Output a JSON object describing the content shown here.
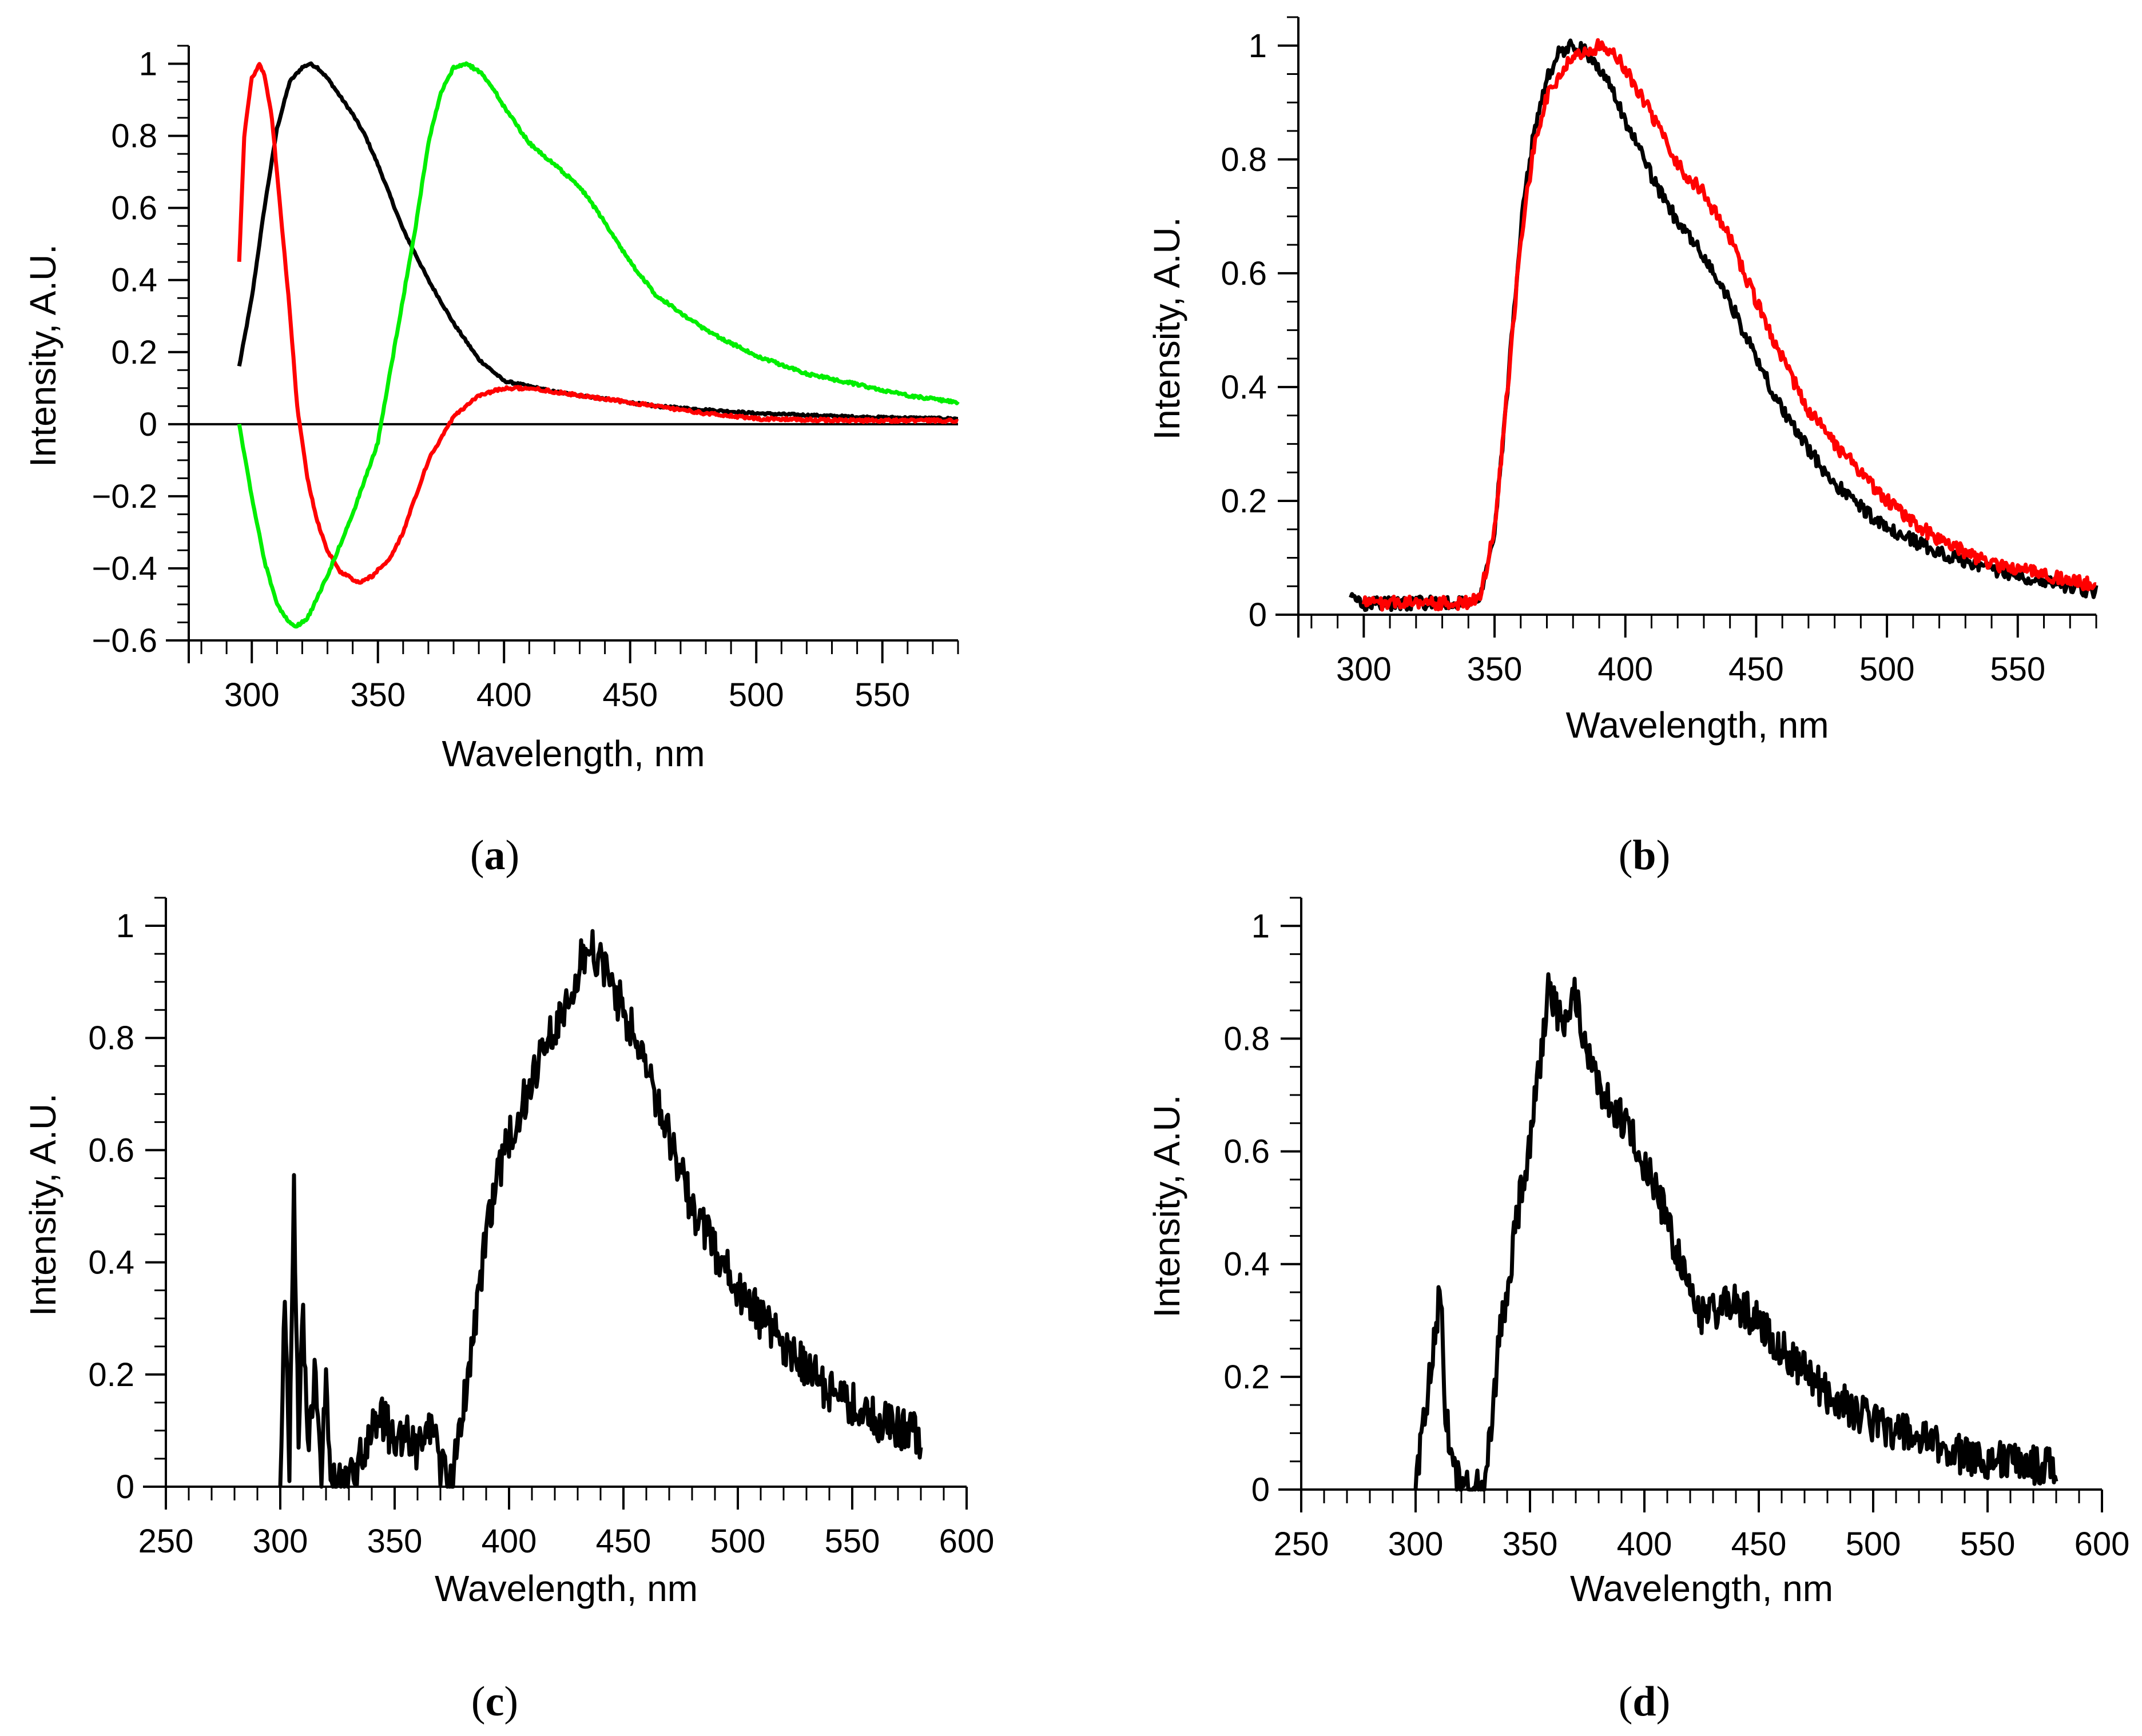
{
  "chart_data": [
    {
      "panel": "(a)",
      "caption_letter": "a",
      "type": "line",
      "xlabel": "Wavelength, nm",
      "ylabel": "Intensity, A.U.",
      "xlim": [
        275,
        580
      ],
      "ylim": [
        -0.6,
        1.05
      ],
      "xticks": [
        300,
        350,
        400,
        450,
        500,
        550
      ],
      "yticks": [
        -0.6,
        -0.4,
        -0.2,
        0,
        0.2,
        0.4,
        0.6,
        0.8,
        1
      ],
      "zero_line": true,
      "series": [
        {
          "name": "black",
          "color": "#000000",
          "noise": 0.003,
          "x": [
            295,
            300,
            305,
            310,
            315,
            320,
            323,
            326,
            330,
            335,
            340,
            345,
            350,
            355,
            360,
            370,
            380,
            390,
            400,
            420,
            440,
            460,
            480,
            500,
            540,
            580
          ],
          "y": [
            0.16,
            0.35,
            0.6,
            0.82,
            0.95,
            0.99,
            1.0,
            0.99,
            0.96,
            0.91,
            0.86,
            0.8,
            0.72,
            0.63,
            0.54,
            0.4,
            0.28,
            0.18,
            0.12,
            0.09,
            0.07,
            0.05,
            0.04,
            0.03,
            0.02,
            0.015
          ]
        },
        {
          "name": "red",
          "color": "#ff0000",
          "noise": 0.004,
          "x": [
            295,
            297,
            300,
            303,
            305,
            308,
            311,
            315,
            318,
            322,
            326,
            330,
            335,
            340,
            343,
            348,
            355,
            360,
            365,
            370,
            380,
            390,
            400,
            410,
            420,
            440,
            460,
            480,
            500,
            540,
            580
          ],
          "y": [
            0.45,
            0.8,
            0.96,
            1.0,
            0.97,
            0.85,
            0.62,
            0.32,
            0.05,
            -0.15,
            -0.27,
            -0.35,
            -0.41,
            -0.43,
            -0.44,
            -0.42,
            -0.37,
            -0.3,
            -0.2,
            -0.1,
            0.02,
            0.08,
            0.1,
            0.1,
            0.09,
            0.07,
            0.05,
            0.03,
            0.015,
            0.01,
            0.01
          ]
        },
        {
          "name": "green",
          "color": "#00ee00",
          "noise": 0.004,
          "x": [
            295,
            300,
            305,
            310,
            315,
            318,
            322,
            326,
            330,
            340,
            350,
            360,
            365,
            370,
            375,
            380,
            385,
            390,
            395,
            400,
            410,
            420,
            430,
            440,
            450,
            460,
            480,
            500,
            520,
            540,
            560,
            580
          ],
          "y": [
            0.0,
            -0.2,
            -0.38,
            -0.5,
            -0.55,
            -0.56,
            -0.54,
            -0.48,
            -0.42,
            -0.25,
            -0.05,
            0.35,
            0.55,
            0.78,
            0.92,
            0.99,
            1.0,
            0.98,
            0.94,
            0.88,
            0.78,
            0.72,
            0.66,
            0.56,
            0.45,
            0.36,
            0.26,
            0.19,
            0.14,
            0.11,
            0.08,
            0.06
          ]
        }
      ]
    },
    {
      "panel": "(b)",
      "caption_letter": "b",
      "type": "line",
      "xlabel": "Wavelength, nm",
      "ylabel": "Intensity, A.U.",
      "xlim": [
        275,
        580
      ],
      "ylim": [
        0,
        1.05
      ],
      "xticks": [
        300,
        350,
        400,
        450,
        500,
        550
      ],
      "yticks": [
        0,
        0.2,
        0.4,
        0.6,
        0.8,
        1
      ],
      "zero_line": false,
      "series": [
        {
          "name": "black",
          "color": "#000000",
          "noise": 0.012,
          "x": [
            295,
            300,
            310,
            320,
            330,
            340,
            345,
            350,
            355,
            360,
            365,
            370,
            375,
            380,
            385,
            390,
            395,
            400,
            410,
            420,
            430,
            440,
            450,
            460,
            470,
            480,
            500,
            520,
            540,
            560,
            580
          ],
          "y": [
            0.03,
            0.02,
            0.02,
            0.02,
            0.02,
            0.02,
            0.04,
            0.15,
            0.4,
            0.68,
            0.85,
            0.94,
            0.99,
            1.0,
            0.99,
            0.96,
            0.92,
            0.87,
            0.77,
            0.69,
            0.63,
            0.55,
            0.45,
            0.36,
            0.29,
            0.23,
            0.15,
            0.11,
            0.08,
            0.06,
            0.04
          ]
        },
        {
          "name": "red",
          "color": "#ff0000",
          "noise": 0.012,
          "x": [
            300,
            310,
            320,
            330,
            340,
            345,
            350,
            355,
            360,
            365,
            370,
            375,
            380,
            385,
            390,
            395,
            400,
            410,
            420,
            430,
            440,
            450,
            460,
            470,
            480,
            500,
            520,
            540,
            560,
            580
          ],
          "y": [
            0.02,
            0.02,
            0.02,
            0.02,
            0.02,
            0.04,
            0.15,
            0.4,
            0.66,
            0.82,
            0.91,
            0.95,
            0.98,
            0.99,
            1.0,
            0.99,
            0.96,
            0.88,
            0.79,
            0.74,
            0.66,
            0.55,
            0.45,
            0.36,
            0.3,
            0.2,
            0.13,
            0.09,
            0.07,
            0.05
          ]
        }
      ]
    },
    {
      "panel": "(c)",
      "caption_letter": "c",
      "type": "line",
      "xlabel": "Wavelength, nm",
      "ylabel": "Intensity, A.U.",
      "xlim": [
        250,
        600
      ],
      "ylim": [
        0,
        1.05
      ],
      "xticks": [
        250,
        300,
        350,
        400,
        450,
        500,
        550,
        600
      ],
      "yticks": [
        0,
        0.2,
        0.4,
        0.6,
        0.8,
        1
      ],
      "zero_line": false,
      "series": [
        {
          "name": "black",
          "color": "#000000",
          "noise": 0.04,
          "x": [
            300,
            302,
            304,
            306,
            308,
            310,
            312,
            315,
            318,
            320,
            322,
            325,
            330,
            335,
            340,
            345,
            350,
            355,
            360,
            365,
            370,
            375,
            380,
            385,
            390,
            395,
            400,
            410,
            420,
            430,
            435,
            440,
            450,
            460,
            470,
            480,
            490,
            500,
            520,
            540,
            560,
            580
          ],
          "y": [
            0.0,
            0.35,
            0.05,
            0.52,
            0.1,
            0.3,
            0.05,
            0.2,
            0.03,
            0.22,
            0.0,
            0.0,
            0.0,
            0.05,
            0.1,
            0.12,
            0.08,
            0.1,
            0.06,
            0.12,
            0.04,
            0.0,
            0.15,
            0.28,
            0.45,
            0.55,
            0.62,
            0.72,
            0.82,
            0.92,
            0.97,
            0.93,
            0.85,
            0.75,
            0.62,
            0.5,
            0.42,
            0.35,
            0.25,
            0.17,
            0.12,
            0.09
          ]
        }
      ]
    },
    {
      "panel": "(d)",
      "caption_letter": "d",
      "type": "line",
      "xlabel": "Wavelength, nm",
      "ylabel": "Intensity, A.U.",
      "xlim": [
        250,
        600
      ],
      "ylim": [
        0,
        1.05
      ],
      "xticks": [
        250,
        300,
        350,
        400,
        450,
        500,
        550,
        600
      ],
      "yticks": [
        0,
        0.2,
        0.4,
        0.6,
        0.8,
        1
      ],
      "zero_line": false,
      "series": [
        {
          "name": "black",
          "color": "#000000",
          "noise": 0.035,
          "x": [
            300,
            303,
            306,
            309,
            311,
            313,
            316,
            320,
            325,
            330,
            333,
            336,
            340,
            345,
            350,
            355,
            358,
            362,
            366,
            370,
            375,
            380,
            390,
            400,
            410,
            420,
            425,
            430,
            440,
            450,
            460,
            470,
            480,
            500,
            520,
            540,
            560,
            580
          ],
          "y": [
            0.0,
            0.1,
            0.2,
            0.3,
            0.35,
            0.15,
            0.05,
            0.0,
            0.0,
            0.0,
            0.1,
            0.25,
            0.35,
            0.5,
            0.62,
            0.78,
            0.9,
            0.85,
            0.82,
            0.88,
            0.78,
            0.72,
            0.66,
            0.58,
            0.48,
            0.34,
            0.31,
            0.32,
            0.33,
            0.3,
            0.25,
            0.21,
            0.17,
            0.12,
            0.09,
            0.06,
            0.05,
            0.04
          ]
        }
      ]
    }
  ]
}
